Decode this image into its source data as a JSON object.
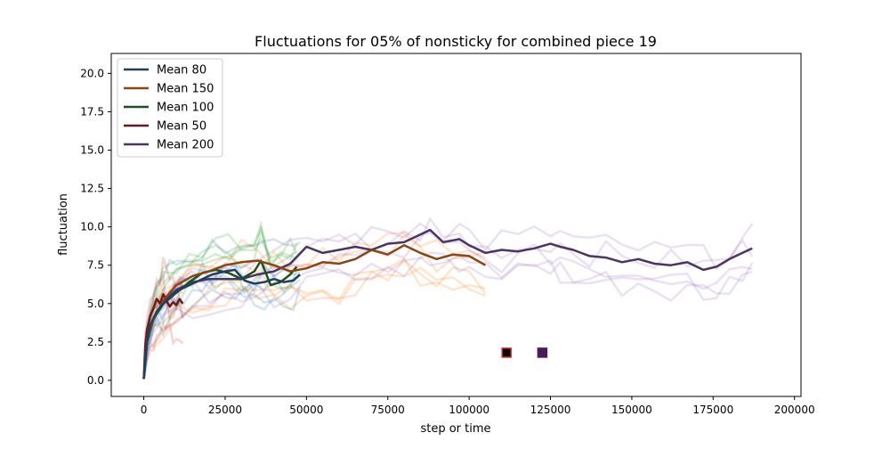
{
  "chart_data": {
    "type": "line",
    "title": "Fluctuations for 05% of nonsticky for combined piece 19",
    "xlabel": "step or time",
    "ylabel": "fluctuation",
    "xlim": [
      -10000,
      202000
    ],
    "ylim": [
      -1.05,
      21.3
    ],
    "x_ticks": [
      0,
      25000,
      50000,
      75000,
      100000,
      125000,
      150000,
      175000,
      200000
    ],
    "x_tick_labels": [
      "0",
      "25000",
      "50000",
      "75000",
      "100000",
      "125000",
      "150000",
      "175000",
      "200000"
    ],
    "y_ticks": [
      0.0,
      2.5,
      5.0,
      7.5,
      10.0,
      12.5,
      15.0,
      17.5,
      20.0
    ],
    "y_tick_labels": [
      "0.0",
      "2.5",
      "5.0",
      "7.5",
      "10.0",
      "12.5",
      "15.0",
      "17.5",
      "20.0"
    ],
    "grid": false,
    "legend_position": "top-left",
    "series": [
      {
        "name": "Mean 80",
        "color": "#1f3f5f",
        "band_color": "#1f77b4",
        "x": [
          0,
          1000,
          2000,
          4000,
          6000,
          8000,
          10000,
          12000,
          15000,
          18000,
          21000,
          25000,
          28000,
          31000,
          34000,
          37000,
          40000,
          43000,
          46000,
          48000
        ],
        "y": [
          0.1,
          2.6,
          3.6,
          4.5,
          5.0,
          5.4,
          5.8,
          6.0,
          6.3,
          6.6,
          6.9,
          7.1,
          7.2,
          6.5,
          6.3,
          6.4,
          6.6,
          6.4,
          6.5,
          6.9
        ]
      },
      {
        "name": "Mean 150",
        "color": "#8b4513",
        "band_color": "#ff7f0e",
        "x": [
          0,
          1000,
          3000,
          6000,
          10000,
          15000,
          20000,
          25000,
          30000,
          35000,
          40000,
          45000,
          50000,
          55000,
          60000,
          65000,
          70000,
          75000,
          80000,
          85000,
          90000,
          95000,
          100000,
          105000
        ],
        "y": [
          0.1,
          2.7,
          4.0,
          5.2,
          6.2,
          6.8,
          7.1,
          7.5,
          7.7,
          7.8,
          7.5,
          7.1,
          7.3,
          7.7,
          7.6,
          7.9,
          8.5,
          8.2,
          8.8,
          8.3,
          7.9,
          8.2,
          8.1,
          7.5
        ]
      },
      {
        "name": "Mean 100",
        "color": "#1b4f1b",
        "band_color": "#2ca02c",
        "x": [
          0,
          1000,
          3000,
          6000,
          10000,
          14000,
          18000,
          22000,
          26000,
          30000,
          34000,
          36000,
          39000,
          42000,
          45000,
          47000
        ],
        "y": [
          0.1,
          2.5,
          4.0,
          5.0,
          5.7,
          6.4,
          7.0,
          7.2,
          7.0,
          6.6,
          7.1,
          7.8,
          6.2,
          6.4,
          6.9,
          7.4
        ]
      },
      {
        "name": "Mean 50",
        "color": "#6b1a1a",
        "band_color": "#d62728",
        "x": [
          0,
          500,
          1000,
          2000,
          3000,
          4000,
          5000,
          6000,
          7000,
          8000,
          9000,
          10000,
          11000,
          12000
        ],
        "y": [
          0.1,
          2.4,
          3.3,
          4.2,
          4.7,
          5.3,
          5.0,
          5.6,
          5.2,
          4.8,
          5.1,
          4.9,
          5.3,
          5.0
        ]
      },
      {
        "name": "Mean 200",
        "color": "#4b3363",
        "band_color": "#9467bd",
        "x": [
          0,
          1000,
          3000,
          6000,
          10000,
          15000,
          20000,
          25000,
          30000,
          35000,
          40000,
          45000,
          50000,
          55000,
          60000,
          65000,
          70000,
          75000,
          80000,
          85000,
          88000,
          92000,
          97000,
          100000,
          105000,
          110000,
          115000,
          120000,
          125000,
          128000,
          132000,
          137000,
          142000,
          147000,
          152000,
          157000,
          162000,
          167000,
          172000,
          176000,
          180000,
          184000,
          187000
        ],
        "y": [
          0.1,
          2.7,
          4.0,
          5.1,
          5.9,
          6.4,
          6.6,
          6.6,
          6.6,
          6.9,
          7.1,
          7.6,
          8.7,
          8.3,
          8.5,
          8.7,
          8.5,
          8.9,
          9.0,
          9.5,
          9.8,
          9.0,
          9.2,
          8.8,
          8.3,
          8.5,
          8.4,
          8.6,
          8.9,
          8.7,
          8.5,
          8.1,
          8.0,
          7.7,
          7.9,
          7.6,
          7.5,
          7.7,
          7.2,
          7.4,
          7.9,
          8.3,
          8.6
        ]
      }
    ],
    "markers": [
      {
        "x": 111500,
        "y": 1.8,
        "fill": "#000000",
        "edge": "#d62728"
      },
      {
        "x": 122500,
        "y": 1.8,
        "fill": "#4b1a5c",
        "edge": "#4b1a5c"
      }
    ]
  }
}
